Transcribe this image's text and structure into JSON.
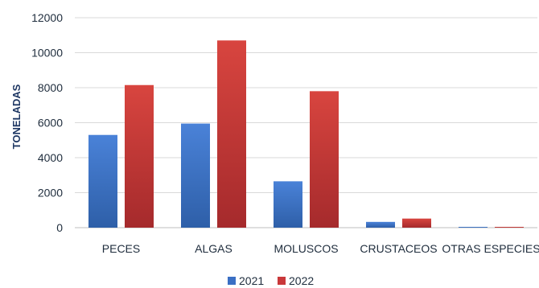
{
  "chart_data": {
    "type": "bar",
    "ylabel": "TONELADAS",
    "ylim": [
      0,
      12000
    ],
    "yticks": [
      0,
      2000,
      4000,
      6000,
      8000,
      10000,
      12000
    ],
    "grid": true,
    "legend_position": "bottom",
    "categories": [
      "PECES",
      "ALGAS",
      "MOLUSCOS",
      "CRUSTACEOS",
      "OTRAS ESPECIES"
    ],
    "series": [
      {
        "name": "2021",
        "color": "#3a6fc4",
        "values": [
          5300,
          5950,
          2650,
          330,
          30
        ]
      },
      {
        "name": "2022",
        "color": "#c9383a",
        "values": [
          8150,
          10700,
          7800,
          520,
          40
        ]
      }
    ]
  }
}
